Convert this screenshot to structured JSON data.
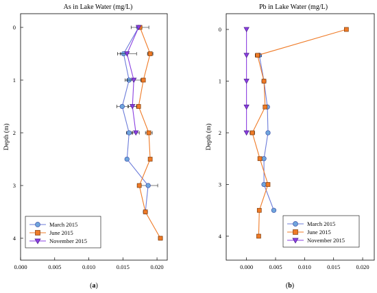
{
  "chart_data": [
    {
      "type": "line",
      "title": "As in Lake Water (mg/L)",
      "ylabel": "Depth (m)",
      "panel_label": "(a)",
      "panel_letter": "a",
      "xlim": [
        0,
        0.0215
      ],
      "ylim": [
        0,
        4.4
      ],
      "y_inverted": true,
      "xticks": [
        "0.000",
        "0.005",
        "0.010",
        "0.015",
        "0.020"
      ],
      "xtick_values": [
        0,
        0.005,
        0.01,
        0.015,
        0.02
      ],
      "yticks": [
        "0",
        "1",
        "2",
        "3",
        "4"
      ],
      "ytick_values": [
        0,
        1,
        2,
        3,
        4
      ],
      "legend_position": "bottom-left",
      "series": [
        {
          "name": "March 2015",
          "color": "#6b7bd9",
          "fill": "#6fa5dc",
          "marker": "circle",
          "depth": [
            0,
            0.5,
            1,
            1.5,
            2,
            2.5,
            3,
            3.5
          ],
          "value": [
            0.0173,
            0.0151,
            0.0159,
            0.0149,
            0.0159,
            0.0156,
            0.0187,
            0.0183
          ],
          "err": [
            0,
            0.0005,
            0.0006,
            0.0008,
            0.0004,
            0.0002,
            0.0014,
            0
          ]
        },
        {
          "name": "June 2015",
          "color": "#ef7a26",
          "fill": "#ef7a26",
          "marker": "square",
          "depth": [
            0,
            0.5,
            1,
            1.5,
            2,
            2.5,
            3,
            3.5,
            4
          ],
          "value": [
            0.0175,
            0.019,
            0.018,
            0.0173,
            0.0188,
            0.019,
            0.0174,
            0.0183,
            0.0205
          ],
          "err": [
            0.0013,
            0.0004,
            0.0003,
            0.0003,
            0.0005,
            0.0002,
            0.0003,
            0.0003,
            0.0003
          ]
        },
        {
          "name": "November 2015",
          "color": "#8a3fe0",
          "fill": "#8a3fe0",
          "marker": "triangle-down",
          "depth": [
            0,
            0.5,
            1,
            1.5,
            2
          ],
          "value": [
            0.0173,
            0.0156,
            0.0166,
            0.0164,
            0.0169
          ],
          "err": [
            0,
            0.0014,
            0.001,
            0.0006,
            0.0005
          ]
        }
      ]
    },
    {
      "type": "line",
      "title": "Pb in Lake Water (mg/L)",
      "ylabel": "Depth (m)",
      "panel_label": "(b)",
      "panel_letter": "b",
      "xlim": [
        -0.0035,
        0.022
      ],
      "ylim": [
        0,
        4.4
      ],
      "y_inverted": true,
      "xticks": [
        "0.000",
        "0.005",
        "0.010",
        "0.015",
        "0.020"
      ],
      "xtick_values": [
        0,
        0.005,
        0.01,
        0.015,
        0.02
      ],
      "yticks": [
        "0",
        "1",
        "2",
        "3",
        "4"
      ],
      "ytick_values": [
        0,
        1,
        2,
        3,
        4
      ],
      "legend_position": "bottom-right",
      "series": [
        {
          "name": "March 2015",
          "color": "#6b7bd9",
          "fill": "#6fa5dc",
          "marker": "circle",
          "depth": [
            0.5,
            1,
            1.5,
            2,
            2.5,
            3,
            3.5
          ],
          "value": [
            0.0022,
            0.003,
            0.0036,
            0.0037,
            0.003,
            0.003,
            0.0047
          ],
          "err": [
            0.0004,
            0.0003,
            0.0003,
            0,
            0,
            0,
            0
          ]
        },
        {
          "name": "June 2015",
          "color": "#ef7a26",
          "fill": "#ef7a26",
          "marker": "square",
          "depth": [
            0,
            0.5,
            1,
            1.5,
            2,
            2.5,
            3,
            3.5,
            4
          ],
          "value": [
            0.0172,
            0.0019,
            0.003,
            0.0032,
            0.001,
            0.0023,
            0.0037,
            0.0022,
            0.0021
          ],
          "err": [
            0,
            0.0004,
            0,
            0,
            0.0004,
            0,
            0,
            0,
            0.0003
          ]
        },
        {
          "name": "November 2015",
          "color": "#8a3fe0",
          "fill": "#8a3fe0",
          "marker": "triangle-down",
          "depth": [
            0,
            0.5,
            1,
            1.5,
            2
          ],
          "value": [
            0,
            0,
            0,
            0,
            0
          ],
          "err": [
            0,
            0,
            0,
            0,
            0
          ]
        }
      ]
    }
  ]
}
